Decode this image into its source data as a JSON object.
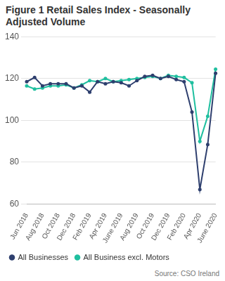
{
  "chart_data": {
    "type": "line",
    "title": "Figure 1 Retail Sales Index - Seasonally Adjusted Volume",
    "annotations": [
      "Source: CSO Ireland"
    ],
    "categories": [
      "Jun 2018",
      null,
      "Aug 2018",
      null,
      "Oct 2018",
      null,
      "Dec 2018",
      null,
      "Feb 2019",
      null,
      "Apr 2019",
      null,
      "June 2019",
      null,
      "Aug 2019",
      null,
      "Oct 2019",
      null,
      "Dec 2019",
      null,
      "Feb 2020",
      null,
      "Apr 2020",
      null,
      "June 2020"
    ],
    "series": [
      {
        "name": "All Businesses",
        "color": "#2e3f6e",
        "marker": "circle",
        "values": [
          118.5,
          120.5,
          116.5,
          117.5,
          117.5,
          117.5,
          115.5,
          116.5,
          113.5,
          118.5,
          117.5,
          118.5,
          118,
          116.5,
          119,
          121,
          121.5,
          120,
          121,
          119.5,
          118.5,
          104,
          67,
          88.5,
          122.5
        ]
      },
      {
        "name": "All Business excl. Motors",
        "color": "#1fbf9f",
        "marker": "circle",
        "values": [
          116.5,
          115,
          115.5,
          116.5,
          116.5,
          117,
          115.5,
          117,
          119,
          118.5,
          120,
          118.5,
          119,
          119.5,
          120,
          120.5,
          121,
          120,
          121.5,
          121,
          120.5,
          118,
          90,
          102,
          124.5
        ]
      }
    ],
    "ylim": [
      60,
      140
    ],
    "yticks": [
      60,
      80,
      100,
      120,
      140
    ],
    "grid": true,
    "legend": "bottom"
  }
}
